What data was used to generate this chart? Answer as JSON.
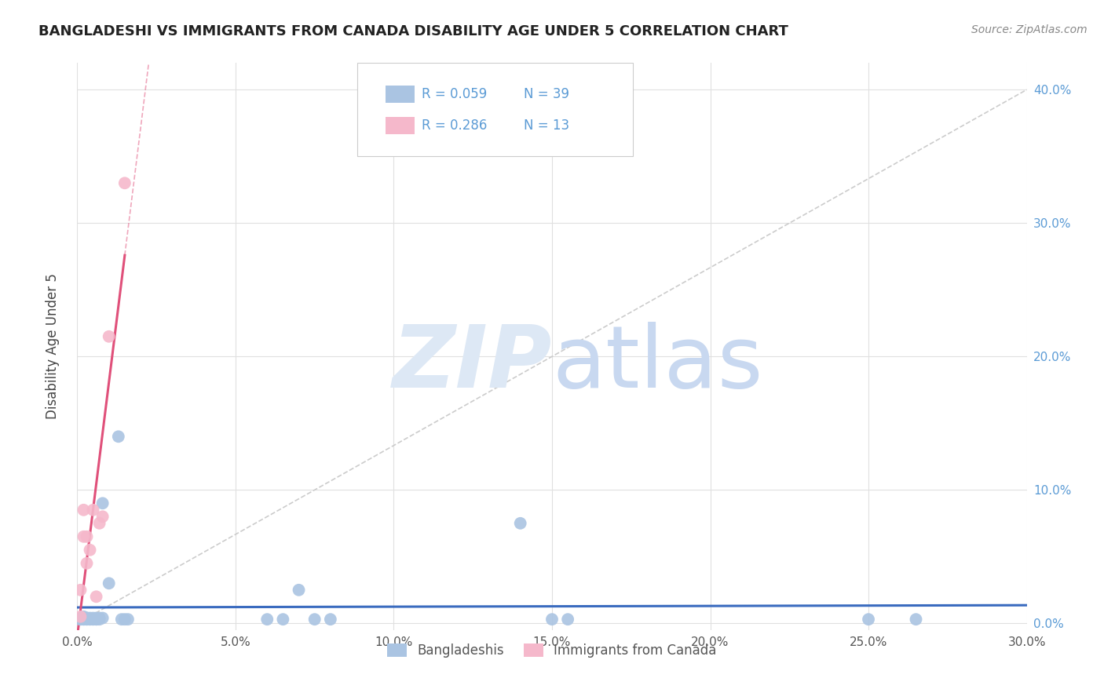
{
  "title": "BANGLADESHI VS IMMIGRANTS FROM CANADA DISABILITY AGE UNDER 5 CORRELATION CHART",
  "source": "Source: ZipAtlas.com",
  "ylabel": "Disability Age Under 5",
  "xlim": [
    0.0,
    0.3
  ],
  "ylim": [
    -0.005,
    0.42
  ],
  "blue_R": 0.059,
  "blue_N": 39,
  "pink_R": 0.286,
  "pink_N": 13,
  "blue_color": "#aac4e2",
  "pink_color": "#f5b8cb",
  "blue_line_color": "#3a6bbf",
  "pink_line_color": "#e0507a",
  "diagonal_color": "#cccccc",
  "background_color": "#ffffff",
  "grid_color": "#e0e0e0",
  "watermark_color": "#dde8f5",
  "legend_label_blue": "Bangladeshis",
  "legend_label_pink": "Immigrants from Canada",
  "blue_x": [
    0.001,
    0.001,
    0.001,
    0.002,
    0.002,
    0.002,
    0.002,
    0.003,
    0.003,
    0.003,
    0.003,
    0.004,
    0.004,
    0.004,
    0.005,
    0.005,
    0.005,
    0.006,
    0.006,
    0.006,
    0.007,
    0.007,
    0.008,
    0.008,
    0.01,
    0.013,
    0.014,
    0.015,
    0.016,
    0.06,
    0.065,
    0.07,
    0.075,
    0.08,
    0.14,
    0.15,
    0.155,
    0.25,
    0.265
  ],
  "blue_y": [
    0.003,
    0.003,
    0.004,
    0.003,
    0.003,
    0.004,
    0.005,
    0.003,
    0.003,
    0.004,
    0.004,
    0.003,
    0.003,
    0.004,
    0.003,
    0.004,
    0.003,
    0.003,
    0.004,
    0.003,
    0.003,
    0.004,
    0.09,
    0.004,
    0.03,
    0.14,
    0.003,
    0.003,
    0.003,
    0.003,
    0.003,
    0.025,
    0.003,
    0.003,
    0.075,
    0.003,
    0.003,
    0.003,
    0.003
  ],
  "pink_x": [
    0.001,
    0.001,
    0.002,
    0.002,
    0.003,
    0.003,
    0.004,
    0.005,
    0.006,
    0.007,
    0.008,
    0.01,
    0.015
  ],
  "pink_y": [
    0.005,
    0.025,
    0.065,
    0.085,
    0.045,
    0.065,
    0.055,
    0.085,
    0.02,
    0.075,
    0.08,
    0.215,
    0.33
  ]
}
